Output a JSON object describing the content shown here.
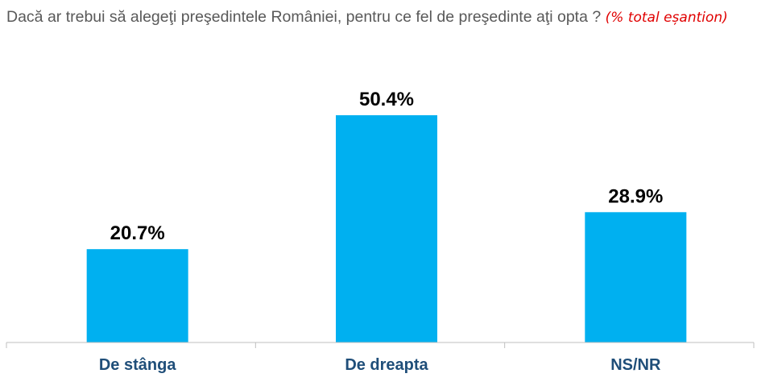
{
  "question": {
    "text": "Dacă ar trebui să alegeţi preşedintele României, pentru ce fel de preşedinte aţi opta ?",
    "note": "(% total eșantion)"
  },
  "colors": {
    "bar": "#00b0f0",
    "category_label": "#1f4e79",
    "note": "#e00000"
  },
  "chart_data": {
    "type": "bar",
    "categories": [
      "De stânga",
      "De dreapta",
      "NS/NR"
    ],
    "values": [
      20.7,
      50.4,
      28.9
    ],
    "value_labels": [
      "20.7%",
      "50.4%",
      "28.9%"
    ],
    "ylim": [
      0,
      60
    ],
    "grid": false,
    "legend": "none"
  }
}
